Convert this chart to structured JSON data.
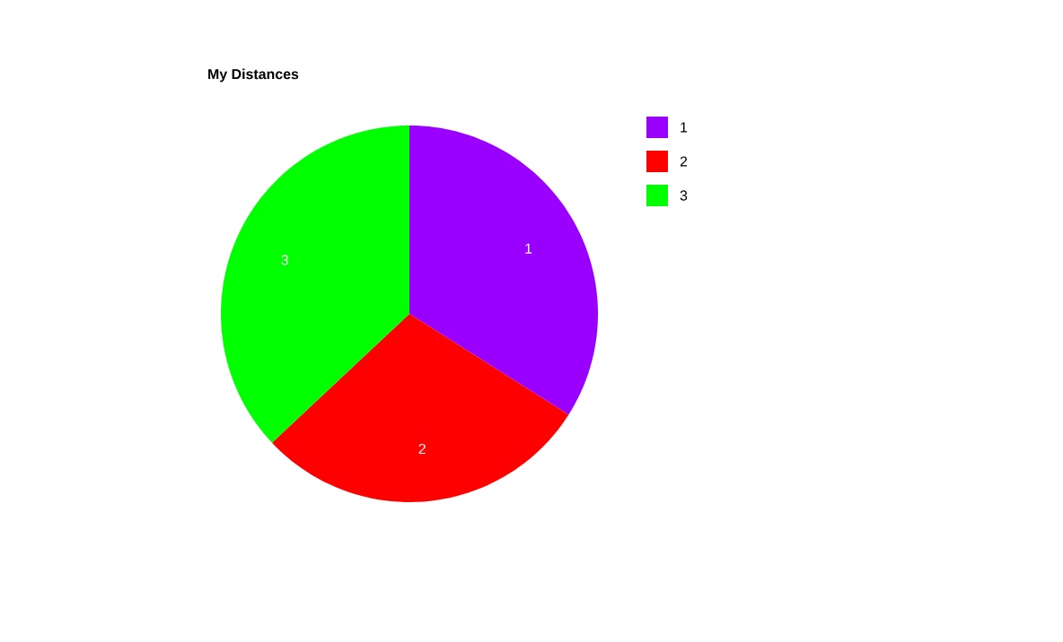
{
  "chart_data": {
    "type": "pie",
    "title": "My Distances",
    "categories": [
      "1",
      "2",
      "3"
    ],
    "values": [
      34,
      29,
      37
    ],
    "colors": [
      "#9900ff",
      "#ff0000",
      "#00ff00"
    ],
    "legend": "right"
  }
}
